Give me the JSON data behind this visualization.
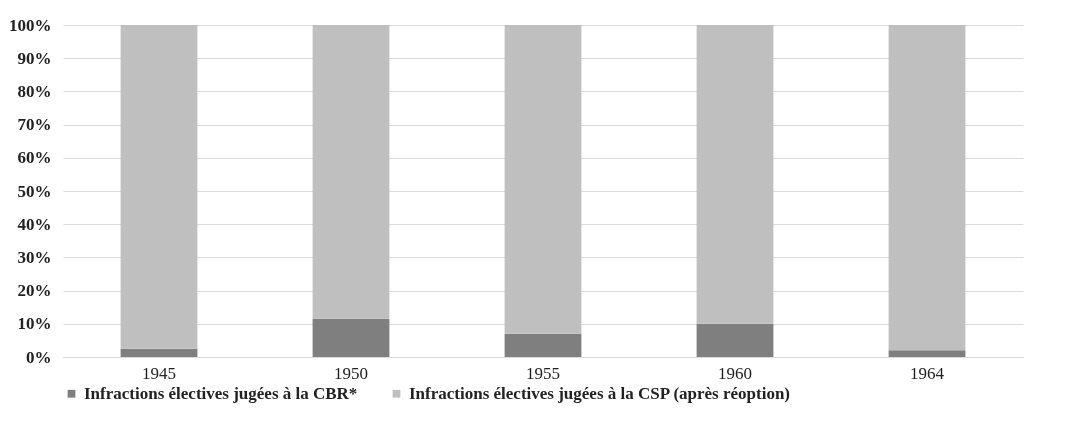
{
  "chart_data": {
    "type": "bar",
    "stacked": true,
    "categories": [
      "1945",
      "1950",
      "1955",
      "1960",
      "1964"
    ],
    "series": [
      {
        "name": "Infractions électives jugées à la CBR*",
        "color": "#7f7f7f",
        "values": [
          2.5,
          11.5,
          7,
          10,
          2
        ]
      },
      {
        "name": "Infractions électives jugées à la CSP (après réoption)",
        "color": "#bfbfbf",
        "values": [
          97.5,
          88.5,
          93,
          90,
          98
        ]
      }
    ],
    "ylim": [
      0,
      100
    ],
    "yticks": [
      {
        "value": 0,
        "label": "0%"
      },
      {
        "value": 10,
        "label": "10%"
      },
      {
        "value": 20,
        "label": "20%"
      },
      {
        "value": 30,
        "label": "30%"
      },
      {
        "value": 40,
        "label": "40%"
      },
      {
        "value": 50,
        "label": "50%"
      },
      {
        "value": 60,
        "label": "60%"
      },
      {
        "value": 70,
        "label": "70%"
      },
      {
        "value": 80,
        "label": "80%"
      },
      {
        "value": 90,
        "label": "90%"
      },
      {
        "value": 100,
        "label": "100%"
      }
    ],
    "grid": "y",
    "legend": "bottom"
  }
}
